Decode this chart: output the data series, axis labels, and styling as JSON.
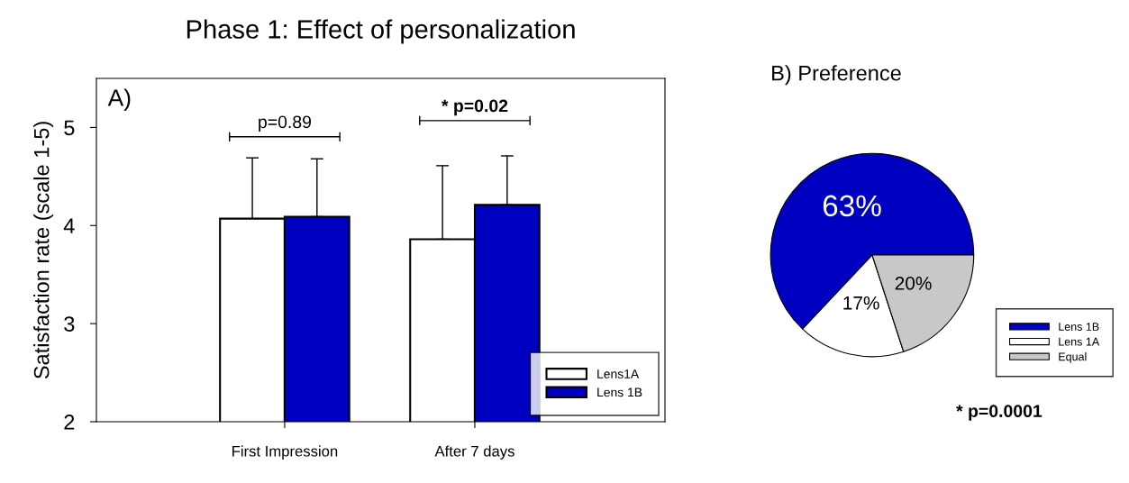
{
  "chart_data": [
    {
      "type": "bar",
      "title": "Phase 1: Effect of personalization",
      "ylabel": "Satisfaction rate (scale 1-5)",
      "categories": [
        "First Impression",
        "After 7 days"
      ],
      "series": [
        {
          "name": "Lens1A",
          "color": "#ffffff",
          "values": [
            4.07,
            3.86
          ],
          "errors": [
            [
              4.07,
              4.69
            ],
            [
              3.86,
              4.61
            ]
          ]
        },
        {
          "name": "Lens 1B",
          "color": "#0000c0",
          "values": [
            4.09,
            4.21
          ],
          "errors": [
            [
              4.09,
              4.68
            ],
            [
              4.21,
              4.71
            ]
          ]
        }
      ],
      "ylim": [
        2,
        5.5
      ],
      "yticks": [
        2,
        3,
        4,
        5
      ],
      "grid": false,
      "legend": "bottom right",
      "annotations": [
        "A)",
        "p=0.89",
        "* p=0.02"
      ]
    },
    {
      "type": "pie",
      "title": "B) Preference",
      "categories": [
        "Lens 1B",
        "Lens 1A",
        "Equal"
      ],
      "values": [
        63,
        17,
        20
      ],
      "colors": [
        "#0000c0",
        "#ffffff",
        "#c8c8c8"
      ],
      "value_labels": [
        "63%",
        "17%",
        "20%"
      ],
      "legend": "bottom right",
      "annotations": [
        "* p=0.0001"
      ]
    }
  ]
}
